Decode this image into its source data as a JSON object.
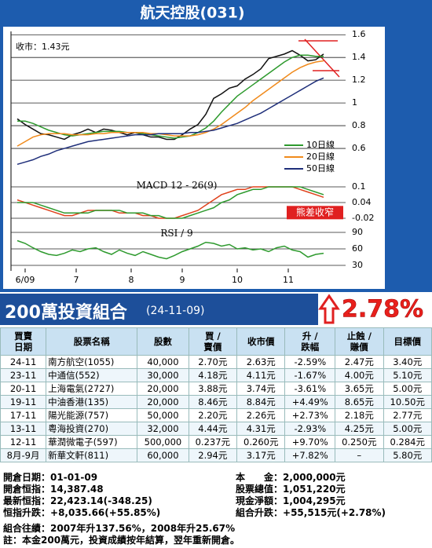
{
  "header": {
    "title": "航天控股(031)"
  },
  "chart_data": [
    {
      "type": "line",
      "annotation": "收市：1.43元",
      "ylim": [
        0.4,
        1.65
      ],
      "yticks": [
        0.6,
        0.8,
        1.0,
        1.2,
        1.4,
        1.6
      ],
      "xlim": [
        0,
        39
      ],
      "grid": true,
      "x": [
        0,
        1,
        2,
        3,
        4,
        5,
        6,
        7,
        8,
        9,
        10,
        11,
        12,
        13,
        14,
        15,
        16,
        17,
        18,
        19,
        20,
        21,
        22,
        23,
        24,
        25,
        26,
        27,
        28,
        29,
        30,
        31,
        32,
        33,
        34,
        35,
        36,
        37,
        38,
        39
      ],
      "series": [
        {
          "color": "#111111",
          "values": [
            0.86,
            0.81,
            0.77,
            0.73,
            0.72,
            0.7,
            0.68,
            0.72,
            0.74,
            0.77,
            0.74,
            0.77,
            0.76,
            0.74,
            0.72,
            0.74,
            0.72,
            0.7,
            0.7,
            0.68,
            0.68,
            0.72,
            0.77,
            0.81,
            0.9,
            1.04,
            1.08,
            1.13,
            1.15,
            1.21,
            1.25,
            1.3,
            1.39,
            1.41,
            1.43,
            1.46,
            1.42,
            1.37,
            1.38,
            1.43
          ]
        },
        {
          "name": "10日線",
          "color": "#2e9a2e",
          "values": [
            0.84,
            0.84,
            0.82,
            0.79,
            0.76,
            0.74,
            0.72,
            0.71,
            0.72,
            0.73,
            0.74,
            0.75,
            0.75,
            0.75,
            0.74,
            0.74,
            0.73,
            0.72,
            0.71,
            0.7,
            0.69,
            0.7,
            0.71,
            0.74,
            0.78,
            0.84,
            0.92,
            0.99,
            1.06,
            1.11,
            1.16,
            1.21,
            1.26,
            1.31,
            1.36,
            1.4,
            1.42,
            1.42,
            1.41,
            1.41
          ]
        },
        {
          "name": "20日線",
          "color": "#f08a1c",
          "values": [
            0.62,
            0.66,
            0.7,
            0.72,
            0.73,
            0.73,
            0.73,
            0.72,
            0.72,
            0.72,
            0.73,
            0.73,
            0.74,
            0.74,
            0.74,
            0.74,
            0.74,
            0.73,
            0.73,
            0.72,
            0.71,
            0.71,
            0.71,
            0.72,
            0.74,
            0.77,
            0.81,
            0.86,
            0.91,
            0.96,
            1.02,
            1.07,
            1.12,
            1.17,
            1.22,
            1.27,
            1.31,
            1.34,
            1.36,
            1.37
          ]
        },
        {
          "name": "50日線",
          "color": "#1f2f7a",
          "values": [
            0.46,
            0.48,
            0.5,
            0.53,
            0.55,
            0.58,
            0.6,
            0.62,
            0.64,
            0.66,
            0.67,
            0.68,
            0.69,
            0.7,
            0.71,
            0.72,
            0.72,
            0.72,
            0.73,
            0.73,
            0.73,
            0.73,
            0.74,
            0.74,
            0.75,
            0.76,
            0.78,
            0.8,
            0.82,
            0.85,
            0.88,
            0.91,
            0.95,
            0.99,
            1.03,
            1.07,
            1.11,
            1.15,
            1.19,
            1.22
          ]
        }
      ]
    },
    {
      "type": "line",
      "title": "MACD 12 - 26(9)",
      "annotation": "熊差收窄",
      "ylim": [
        -0.03,
        0.12
      ],
      "yticks": [
        -0.02,
        0.04,
        0.1
      ],
      "xlim": [
        0,
        39
      ],
      "grid": true,
      "x": [
        0,
        1,
        2,
        3,
        4,
        5,
        6,
        7,
        8,
        9,
        10,
        11,
        12,
        13,
        14,
        15,
        16,
        17,
        18,
        19,
        20,
        21,
        22,
        23,
        24,
        25,
        26,
        27,
        28,
        29,
        30,
        31,
        32,
        33,
        34,
        35,
        36,
        37,
        38,
        39
      ],
      "series": [
        {
          "color": "#e0421c",
          "values": [
            0.05,
            0.04,
            0.03,
            0.02,
            0.01,
            0.0,
            -0.01,
            -0.01,
            0.0,
            0.01,
            0.01,
            0.01,
            0.01,
            0.0,
            0.0,
            0.0,
            -0.01,
            -0.01,
            -0.02,
            -0.02,
            -0.02,
            -0.01,
            0.0,
            0.01,
            0.03,
            0.05,
            0.07,
            0.08,
            0.09,
            0.09,
            0.1,
            0.1,
            0.1,
            0.1,
            0.1,
            0.1,
            0.09,
            0.08,
            0.07,
            0.06
          ]
        },
        {
          "color": "#2e9a2e",
          "values": [
            0.04,
            0.04,
            0.04,
            0.03,
            0.02,
            0.01,
            0.0,
            0.0,
            0.0,
            0.0,
            0.01,
            0.01,
            0.01,
            0.01,
            0.0,
            0.0,
            0.0,
            -0.01,
            -0.01,
            -0.02,
            -0.02,
            -0.02,
            -0.01,
            0.0,
            0.01,
            0.02,
            0.04,
            0.05,
            0.07,
            0.08,
            0.09,
            0.09,
            0.1,
            0.1,
            0.1,
            0.1,
            0.1,
            0.09,
            0.08,
            0.07
          ]
        }
      ]
    },
    {
      "type": "line",
      "title": "RSI / 9",
      "ylim": [
        25,
        95
      ],
      "yticks": [
        30,
        60,
        90
      ],
      "xlim": [
        0,
        39
      ],
      "grid": true,
      "xticks": [
        {
          "value": 1,
          "label": "6/09"
        },
        {
          "value": 7.5,
          "label": "7"
        },
        {
          "value": 14.5,
          "label": "8"
        },
        {
          "value": 21,
          "label": "9"
        },
        {
          "value": 28,
          "label": "10"
        },
        {
          "value": 34.5,
          "label": "11"
        }
      ],
      "x": [
        0,
        1,
        2,
        3,
        4,
        5,
        6,
        7,
        8,
        9,
        10,
        11,
        12,
        13,
        14,
        15,
        16,
        17,
        18,
        19,
        20,
        21,
        22,
        23,
        24,
        25,
        26,
        27,
        28,
        29,
        30,
        31,
        32,
        33,
        34,
        35,
        36,
        37,
        38,
        39
      ],
      "series": [
        {
          "color": "#2e9a2e",
          "values": [
            75,
            70,
            62,
            55,
            50,
            48,
            52,
            58,
            55,
            60,
            62,
            55,
            50,
            58,
            52,
            48,
            55,
            50,
            45,
            42,
            48,
            55,
            60,
            65,
            72,
            70,
            65,
            68,
            60,
            62,
            58,
            60,
            55,
            62,
            65,
            58,
            55,
            45,
            50,
            52
          ]
        }
      ]
    }
  ],
  "portfolio": {
    "title": "200萬投資組合",
    "date": "(24-11-09)",
    "change": "2.78%",
    "table": {
      "header": [
        [
          "買賣",
          "日期"
        ],
        [
          "股票名稱"
        ],
        [
          "股數"
        ],
        [
          "買 /",
          "賣價"
        ],
        [
          "收市價"
        ],
        [
          "升 /",
          "跌幅"
        ],
        [
          "止蝕 /",
          "賺價"
        ],
        [
          "目標價"
        ]
      ],
      "rows": [
        [
          "24-11",
          "南方航空(1055)",
          "40,000",
          "2.70元",
          "2.63元",
          "-2.59%",
          "2.47元",
          "3.40元"
        ],
        [
          "23-11",
          "中通信(552)",
          "30,000",
          "4.18元",
          "4.11元",
          "-1.67%",
          "4.00元",
          "5.10元"
        ],
        [
          "20-11",
          "上海電氣(2727)",
          "20,000",
          "3.88元",
          "3.74元",
          "-3.61%",
          "3.65元",
          "5.00元"
        ],
        [
          "19-11",
          "中油香港(135)",
          "20,000",
          "8.46元",
          "8.84元",
          "+4.49%",
          "8.65元",
          "10.50元"
        ],
        [
          "17-11",
          "陽光能源(757)",
          "50,000",
          "2.20元",
          "2.26元",
          "+2.73%",
          "2.18元",
          "2.77元"
        ],
        [
          "13-11",
          "粵海投資(270)",
          "32,000",
          "4.44元",
          "4.31元",
          "-2.93%",
          "4.25元",
          "5.00元"
        ],
        [
          "12-11",
          "華潤微電子(597)",
          "500,000",
          "0.237元",
          "0.260元",
          "+9.70%",
          "0.250元",
          "0.284元"
        ],
        [
          "8月-9月",
          "新華文軒(811)",
          "60,000",
          "2.94元",
          "3.17元",
          "+7.82%",
          "–",
          "5.80元"
        ]
      ]
    },
    "summary_left": [
      [
        "開倉日期：",
        "01-01-09"
      ],
      [
        "開倉恒指：",
        "14,387.48"
      ],
      [
        "最新恒指：",
        "22,423.14(-348.25)"
      ],
      [
        "恒指升跌：",
        "+8,035.66(+55.85%)"
      ]
    ],
    "summary_right": [
      [
        "本　　金：",
        "2,000,000元"
      ],
      [
        "股票總值：",
        "1,051,220元"
      ],
      [
        "現金淨額：",
        "1,004,295元"
      ],
      [
        "組合升跌：",
        "+55,515元(+2.78%)"
      ]
    ],
    "notes": [
      "組合往績：2007年升137.56%，2008年升25.67%",
      "註：本金200萬元，投資成績按年結算，翌年重新開倉。"
    ]
  }
}
